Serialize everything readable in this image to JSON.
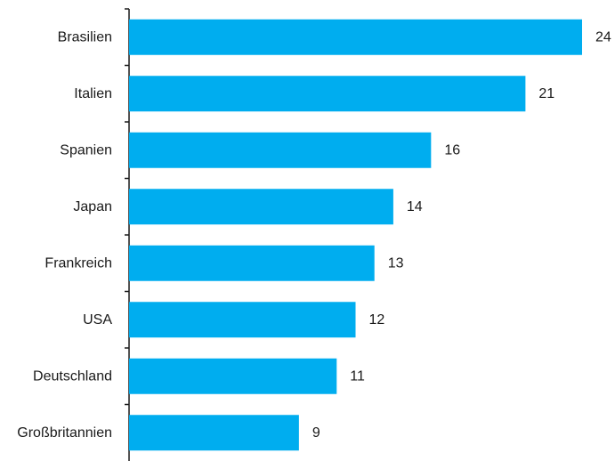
{
  "chart_data": {
    "type": "bar",
    "orientation": "horizontal",
    "title": "",
    "xlabel": "",
    "ylabel": "",
    "categories": [
      "Brasilien",
      "Italien",
      "Spanien",
      "Japan",
      "Frankreich",
      "USA",
      "Deutschland",
      "Großbritannien"
    ],
    "values": [
      24,
      21,
      16,
      14,
      13,
      12,
      11,
      9
    ],
    "xlim": [
      0,
      24
    ],
    "grid": false,
    "legend": "none",
    "data_labels": true,
    "bar_color": "#00adef",
    "axis_color": "#1a1a1a"
  }
}
